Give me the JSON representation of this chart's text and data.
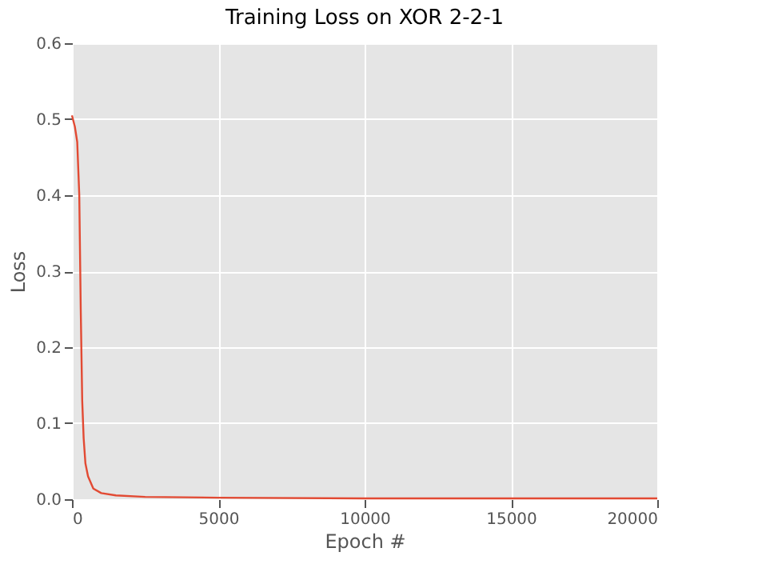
{
  "chart_data": {
    "type": "line",
    "title": "Training Loss on XOR 2-2-1",
    "xlabel": "Epoch #",
    "ylabel": "Loss",
    "x": [
      0,
      100,
      180,
      250,
      300,
      350,
      400,
      460,
      550,
      730,
      1000,
      1500,
      2500,
      5000,
      10000,
      20000
    ],
    "series": [
      {
        "color": "#e24a33",
        "values": [
          0.505,
          0.49,
          0.47,
          0.4,
          0.25,
          0.13,
          0.08,
          0.047,
          0.03,
          0.014,
          0.008,
          0.005,
          0.003,
          0.002,
          0.001,
          0.001
        ]
      }
    ],
    "xlim": [
      0,
      20000
    ],
    "xticks": [
      0,
      5000,
      10000,
      15000,
      20000
    ],
    "ylim": [
      0,
      0.6
    ],
    "yticks": [
      {
        "value": 0,
        "label": "0.0"
      },
      0.1,
      0.2,
      0.3,
      0.4,
      0.5,
      0.6
    ],
    "grid": true,
    "line_style": "solid",
    "marker": "none"
  }
}
